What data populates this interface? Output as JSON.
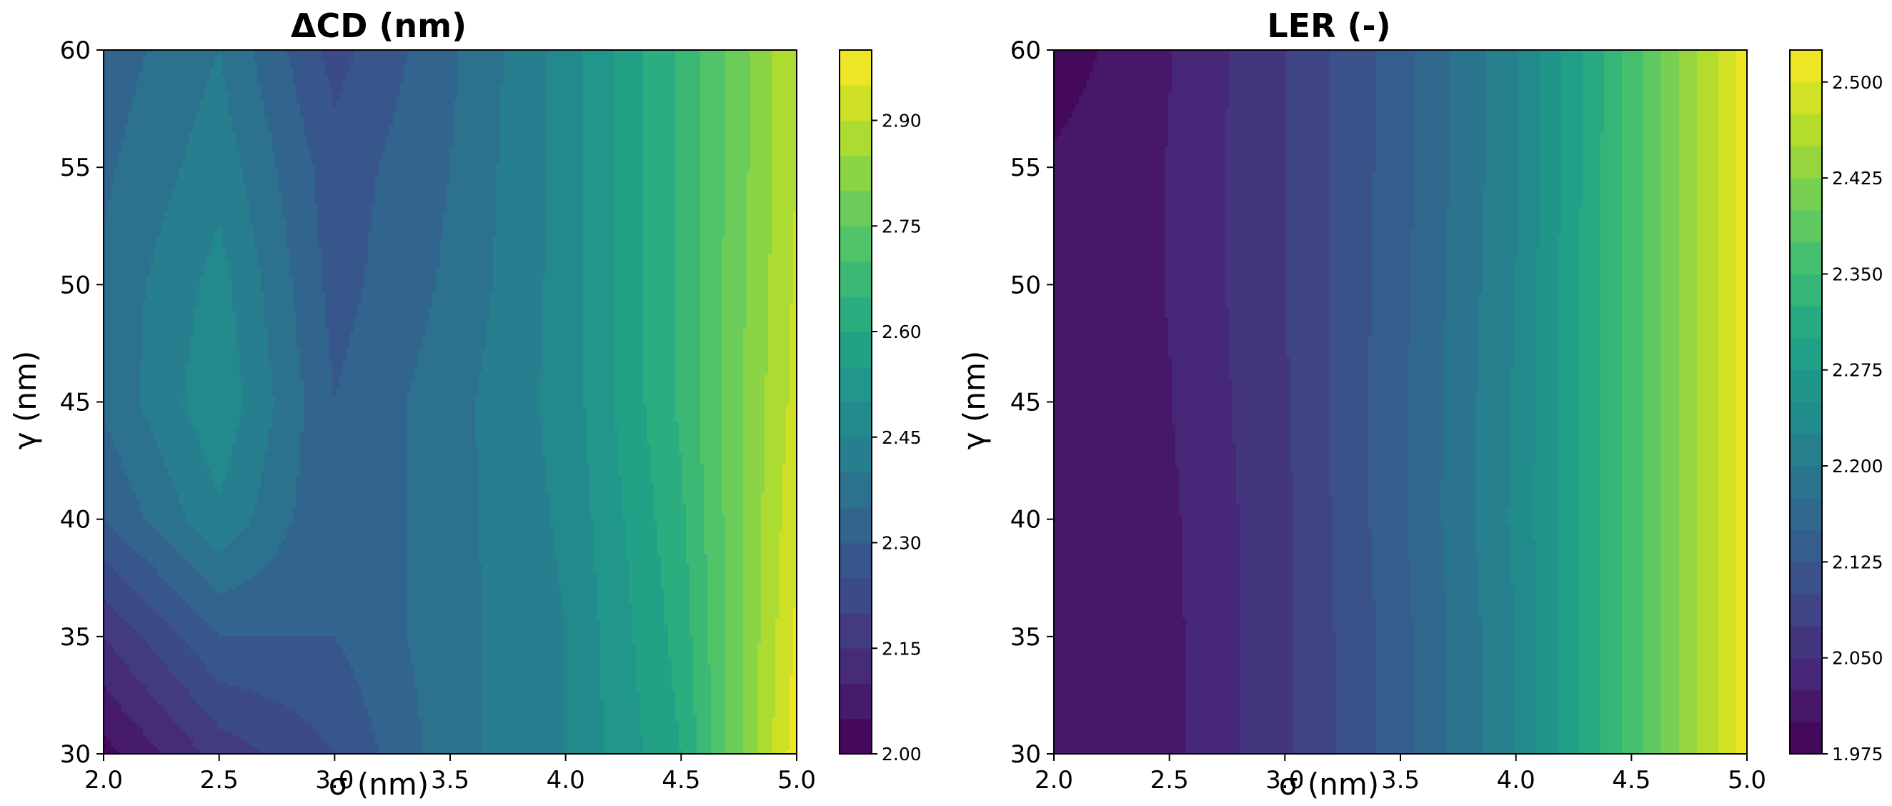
{
  "chart_data": [
    {
      "type": "heatmap",
      "subtype": "filled-contour",
      "title": "ΔCD (nm)",
      "xlabel": "σ (nm)",
      "ylabel": "γ (nm)",
      "xlim": [
        2.0,
        5.0
      ],
      "ylim": [
        30,
        60
      ],
      "x_ticks": [
        "2.0",
        "2.5",
        "3.0",
        "3.5",
        "4.0",
        "4.5",
        "5.0"
      ],
      "y_ticks": [
        "30",
        "35",
        "40",
        "45",
        "50",
        "55",
        "60"
      ],
      "colormap": "viridis",
      "colorbar": {
        "range": [
          2.0,
          3.0
        ],
        "levels": 20,
        "ticks": [
          "2.00",
          "2.15",
          "2.30",
          "2.45",
          "2.60",
          "2.75",
          "2.90"
        ]
      },
      "x": [
        2.0,
        2.5,
        3.0,
        3.5,
        4.0,
        4.5,
        5.0
      ],
      "y": [
        30,
        35,
        40,
        45,
        50,
        55,
        60
      ],
      "z": [
        [
          2.03,
          2.17,
          2.25,
          2.38,
          2.45,
          2.6,
          2.98
        ],
        [
          2.15,
          2.3,
          2.3,
          2.38,
          2.45,
          2.62,
          2.96
        ],
        [
          2.3,
          2.44,
          2.3,
          2.38,
          2.46,
          2.64,
          2.94
        ],
        [
          2.36,
          2.49,
          2.3,
          2.38,
          2.47,
          2.66,
          2.92
        ],
        [
          2.36,
          2.47,
          2.28,
          2.36,
          2.47,
          2.66,
          2.91
        ],
        [
          2.34,
          2.43,
          2.27,
          2.35,
          2.47,
          2.66,
          2.9
        ],
        [
          2.32,
          2.4,
          2.23,
          2.34,
          2.47,
          2.66,
          2.9
        ]
      ]
    },
    {
      "type": "heatmap",
      "subtype": "filled-contour",
      "title": "LER (-)",
      "xlabel": "σ (nm)",
      "ylabel": "γ (nm)",
      "xlim": [
        2.0,
        5.0
      ],
      "ylim": [
        30,
        60
      ],
      "x_ticks": [
        "2.0",
        "2.5",
        "3.0",
        "3.5",
        "4.0",
        "4.5",
        "5.0"
      ],
      "y_ticks": [
        "30",
        "35",
        "40",
        "45",
        "50",
        "55",
        "60"
      ],
      "colormap": "viridis",
      "colorbar": {
        "range": [
          1.975,
          2.525
        ],
        "levels": 22,
        "ticks": [
          "1.975",
          "2.050",
          "2.125",
          "2.200",
          "2.275",
          "2.350",
          "2.425",
          "2.500"
        ]
      },
      "x": [
        2.0,
        2.5,
        3.0,
        3.5,
        4.0,
        4.5,
        5.0
      ],
      "y": [
        30,
        35,
        40,
        45,
        50,
        55,
        60
      ],
      "z": [
        [
          2.01,
          2.018,
          2.07,
          2.14,
          2.225,
          2.36,
          2.515
        ],
        [
          2.01,
          2.018,
          2.07,
          2.14,
          2.225,
          2.36,
          2.515
        ],
        [
          2.01,
          2.02,
          2.07,
          2.145,
          2.23,
          2.36,
          2.515
        ],
        [
          2.01,
          2.024,
          2.072,
          2.145,
          2.228,
          2.36,
          2.515
        ],
        [
          2.008,
          2.026,
          2.075,
          2.142,
          2.225,
          2.36,
          2.515
        ],
        [
          2.004,
          2.026,
          2.075,
          2.14,
          2.222,
          2.36,
          2.515
        ],
        [
          1.985,
          2.024,
          2.075,
          2.14,
          2.22,
          2.36,
          2.515
        ]
      ]
    }
  ]
}
